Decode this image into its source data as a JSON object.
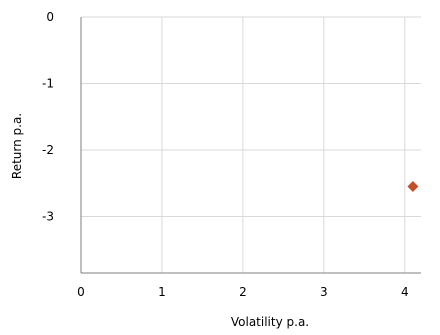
{
  "chart_data": {
    "type": "scatter",
    "xlabel": "Volatility p.a.",
    "ylabel": "Return p.a.",
    "xlim": [
      0,
      4.2
    ],
    "ylim": [
      -3.85,
      0
    ],
    "x_ticks": [
      0,
      1,
      2,
      3,
      4
    ],
    "y_ticks": [
      0,
      -1,
      -2,
      -3
    ],
    "x_tick_labels": [
      "0",
      "1",
      "2",
      "3",
      "4"
    ],
    "y_tick_labels": [
      "0",
      "-1",
      "-2",
      "-3"
    ],
    "grid": true,
    "legend": "none",
    "series": [
      {
        "marker": "diamond",
        "color": "#c0522a",
        "points": [
          {
            "x": 4.1,
            "y": -2.55
          }
        ]
      }
    ]
  },
  "colors": {
    "grid": "#d9d9d9",
    "axis": "#7f7f7f"
  }
}
